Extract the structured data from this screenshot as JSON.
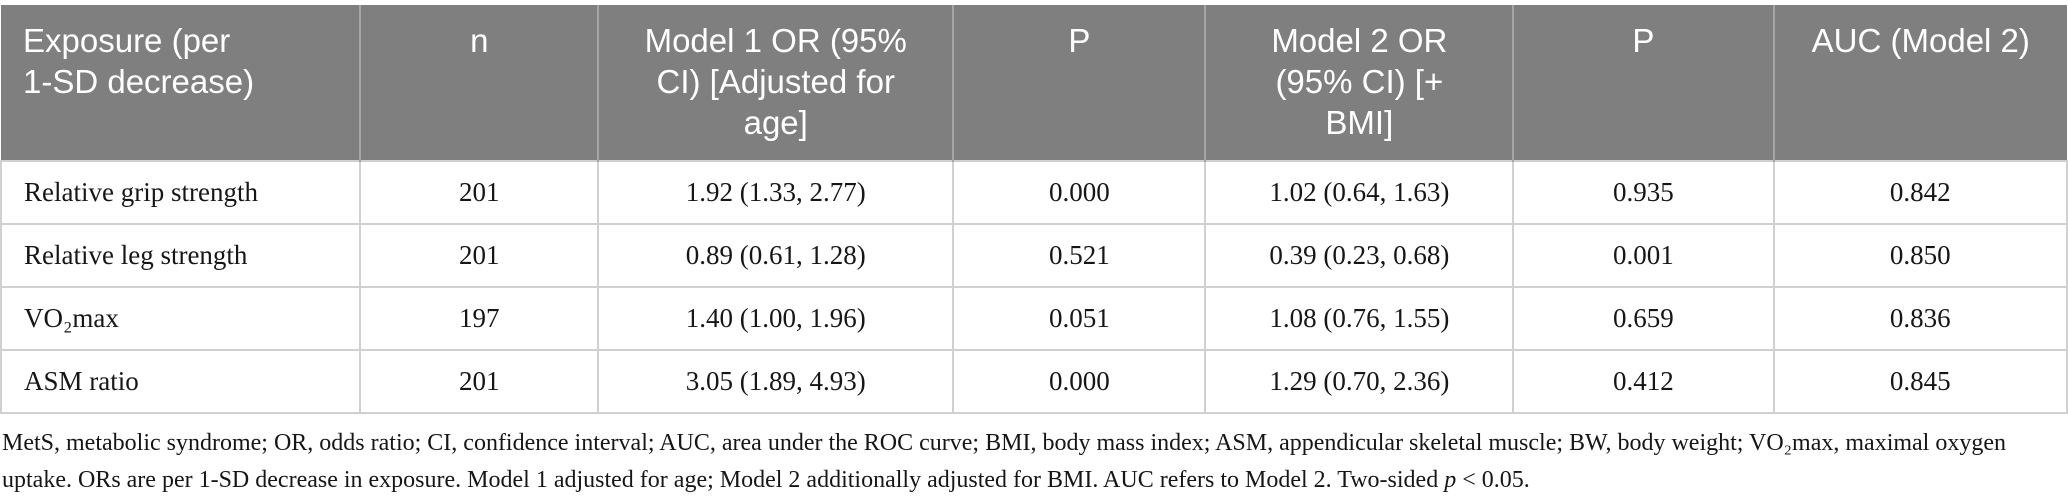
{
  "colors": {
    "header_bg": "#7f7f7f",
    "header_text": "#ffffff",
    "header_divider": "#a6a6a6",
    "body_border": "#d0d0d0",
    "body_text": "#161616",
    "page_bg": "#ffffff"
  },
  "table": {
    "columns": [
      {
        "key": "exposure",
        "label": "Exposure (per 1-SD decrease)",
        "label_lines": [
          "Exposure (per",
          "1-SD decrease)"
        ],
        "align": "left",
        "width": "17.4%"
      },
      {
        "key": "n",
        "label": "n",
        "label_lines": [
          "n"
        ],
        "align": "center",
        "width": "11.5%"
      },
      {
        "key": "model1-or",
        "label": "Model 1 OR (95% CI) [Adjusted for age]",
        "label_lines": [
          "Model 1 OR (95%",
          "CI) [Adjusted for",
          "age]"
        ],
        "align": "center",
        "width": "17.2%"
      },
      {
        "key": "p-model1",
        "label": "P",
        "label_lines": [
          "P"
        ],
        "align": "center",
        "width": "12.2%"
      },
      {
        "key": "model2-or",
        "label": "Model 2 OR (95% CI) [+ BMI]",
        "label_lines": [
          "Model 2 OR",
          "(95% CI) [+",
          "BMI]"
        ],
        "align": "center",
        "width": "14.9%"
      },
      {
        "key": "p-model2",
        "label": "P",
        "label_lines": [
          "P"
        ],
        "align": "center",
        "width": "12.6%"
      },
      {
        "key": "auc",
        "label": "AUC (Model 2)",
        "label_lines": [
          "AUC (Model 2)"
        ],
        "align": "center",
        "width": "14.2%"
      }
    ],
    "rows": [
      [
        "Relative grip strength",
        "201",
        "1.92 (1.33, 2.77)",
        "0.000",
        "1.02 (0.64, 1.63)",
        "0.935",
        "0.842"
      ],
      [
        "Relative leg strength",
        "201",
        "0.89 (0.61, 1.28)",
        "0.521",
        "0.39 (0.23, 0.68)",
        "0.001",
        "0.850"
      ],
      [
        "VO₂max",
        "197",
        "1.40 (1.00, 1.96)",
        "0.051",
        "1.08 (0.76, 1.55)",
        "0.659",
        "0.836"
      ],
      [
        "ASM ratio",
        "201",
        "3.05 (1.89, 4.93)",
        "0.000",
        "1.29 (0.70, 2.36)",
        "0.412",
        "0.845"
      ]
    ]
  },
  "footnote": {
    "segments": [
      {
        "text": "MetS, metabolic syndrome; OR, odds ratio; CI, confidence interval; AUC, area under the ROC curve; BMI, body mass index; ASM, appendicular skeletal muscle; BW, body weight; VO₂max, maximal oxygen uptake. ORs are per 1-SD decrease in exposure. Model 1 adjusted for age; Model 2 additionally adjusted for BMI. AUC refers to Model 2. Two-sided ",
        "italic": false
      },
      {
        "text": "p",
        "italic": true
      },
      {
        "text": " < 0.05.",
        "italic": false
      }
    ]
  }
}
